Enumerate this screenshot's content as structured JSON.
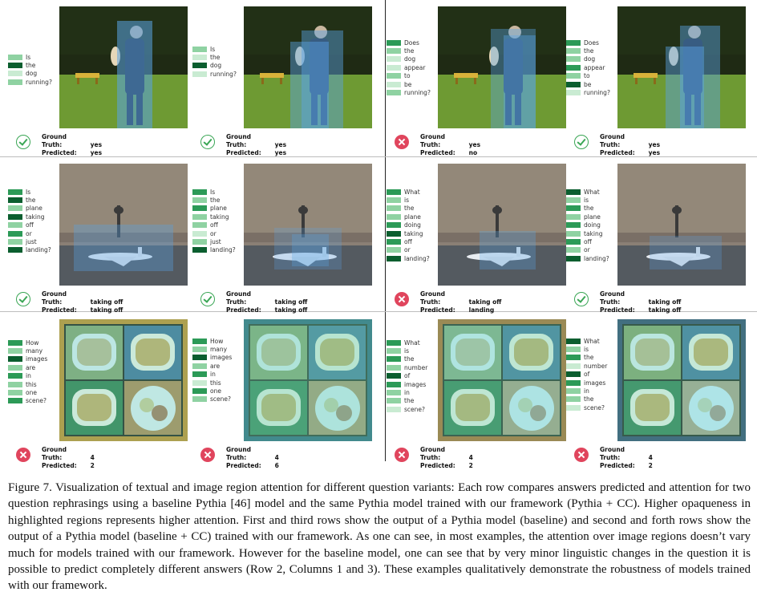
{
  "palette": {
    "dark": "#0b5e2f",
    "mid": "#2c9a57",
    "light": "#8fd2a2",
    "pale": "#c9ebd2"
  },
  "panels": [
    {
      "id": "r1c1",
      "words": [
        [
          "Is",
          "light"
        ],
        [
          "the",
          "dark"
        ],
        [
          "dog",
          "pale"
        ],
        [
          "running?",
          "light"
        ]
      ],
      "scene": "dog",
      "status": "ok",
      "gt_label": "Ground Truth:",
      "gt": "yes",
      "pred_label": "Predicted:",
      "pred": "yes"
    },
    {
      "id": "r1c2",
      "words": [
        [
          "Is",
          "light"
        ],
        [
          "the",
          "pale"
        ],
        [
          "dog",
          "dark"
        ],
        [
          "running?",
          "pale"
        ]
      ],
      "scene": "dog",
      "status": "ok",
      "gt_label": "Ground Truth:",
      "gt": "yes",
      "pred_label": "Predicted:",
      "pred": "yes"
    },
    {
      "id": "r1c3",
      "words": [
        [
          "Does",
          "mid"
        ],
        [
          "the",
          "light"
        ],
        [
          "dog",
          "pale"
        ],
        [
          "appear",
          "pale"
        ],
        [
          "to",
          "light"
        ],
        [
          "be",
          "pale"
        ],
        [
          "running?",
          "light"
        ]
      ],
      "scene": "dog",
      "status": "bad",
      "gt_label": "Ground Truth:",
      "gt": "yes",
      "pred_label": "Predicted:",
      "pred": "no"
    },
    {
      "id": "r1c4",
      "words": [
        [
          "Does",
          "mid"
        ],
        [
          "the",
          "light"
        ],
        [
          "dog",
          "light"
        ],
        [
          "appear",
          "mid"
        ],
        [
          "to",
          "light"
        ],
        [
          "be",
          "dark"
        ],
        [
          "running?",
          "pale"
        ]
      ],
      "scene": "dog",
      "status": "ok",
      "gt_label": "Ground Truth:",
      "gt": "yes",
      "pred_label": "Predicted:",
      "pred": "yes"
    },
    {
      "id": "r2c1",
      "words": [
        [
          "Is",
          "mid"
        ],
        [
          "the",
          "dark"
        ],
        [
          "plane",
          "light"
        ],
        [
          "taking",
          "dark"
        ],
        [
          "off",
          "light"
        ],
        [
          "or",
          "mid"
        ],
        [
          "just",
          "light"
        ],
        [
          "landing?",
          "dark"
        ]
      ],
      "scene": "plane",
      "status": "ok",
      "gt_label": "Ground Truth:",
      "gt": "taking off",
      "pred_label": "Predicted:",
      "pred": "taking off"
    },
    {
      "id": "r2c2",
      "words": [
        [
          "Is",
          "mid"
        ],
        [
          "the",
          "light"
        ],
        [
          "plane",
          "mid"
        ],
        [
          "taking",
          "light"
        ],
        [
          "off",
          "light"
        ],
        [
          "or",
          "pale"
        ],
        [
          "just",
          "light"
        ],
        [
          "landing?",
          "dark"
        ]
      ],
      "scene": "plane",
      "status": "ok",
      "gt_label": "Ground Truth:",
      "gt": "taking off",
      "pred_label": "Predicted:",
      "pred": "taking off"
    },
    {
      "id": "r2c3",
      "words": [
        [
          "What",
          "mid"
        ],
        [
          "is",
          "light"
        ],
        [
          "the",
          "light"
        ],
        [
          "plane",
          "light"
        ],
        [
          "doing",
          "mid"
        ],
        [
          "taking",
          "dark"
        ],
        [
          "off",
          "mid"
        ],
        [
          "or",
          "light"
        ],
        [
          "landing?",
          "dark"
        ]
      ],
      "scene": "plane",
      "status": "bad",
      "gt_label": "Ground Truth:",
      "gt": "taking off",
      "pred_label": "Predicted:",
      "pred": "landing"
    },
    {
      "id": "r2c4",
      "words": [
        [
          "What",
          "dark"
        ],
        [
          "is",
          "light"
        ],
        [
          "the",
          "mid"
        ],
        [
          "plane",
          "light"
        ],
        [
          "doing",
          "mid"
        ],
        [
          "taking",
          "light"
        ],
        [
          "off",
          "mid"
        ],
        [
          "or",
          "light"
        ],
        [
          "landing?",
          "dark"
        ]
      ],
      "scene": "plane",
      "status": "ok",
      "gt_label": "Ground Truth:",
      "gt": "taking off",
      "pred_label": "Predicted:",
      "pred": "taking off"
    },
    {
      "id": "r3c1",
      "words": [
        [
          "How",
          "mid"
        ],
        [
          "many",
          "light"
        ],
        [
          "images",
          "dark"
        ],
        [
          "are",
          "light"
        ],
        [
          "in",
          "mid"
        ],
        [
          "this",
          "light"
        ],
        [
          "one",
          "light"
        ],
        [
          "scene?",
          "mid"
        ]
      ],
      "scene": "food",
      "status": "bad",
      "gt_label": "Ground Truth:",
      "gt": "4",
      "pred_label": "Predicted:",
      "pred": "2"
    },
    {
      "id": "r3c2",
      "words": [
        [
          "How",
          "mid"
        ],
        [
          "many",
          "light"
        ],
        [
          "images",
          "dark"
        ],
        [
          "are",
          "light"
        ],
        [
          "in",
          "mid"
        ],
        [
          "this",
          "pale"
        ],
        [
          "one",
          "mid"
        ],
        [
          "scene?",
          "light"
        ]
      ],
      "scene": "food",
      "status": "bad",
      "gt_label": "Ground Truth:",
      "gt": "4",
      "pred_label": "Predicted:",
      "pred": "6"
    },
    {
      "id": "r3c3",
      "words": [
        [
          "What",
          "mid"
        ],
        [
          "is",
          "light"
        ],
        [
          "the",
          "mid"
        ],
        [
          "number",
          "light"
        ],
        [
          "of",
          "dark"
        ],
        [
          "images",
          "mid"
        ],
        [
          "in",
          "light"
        ],
        [
          "the",
          "light"
        ],
        [
          "scene?",
          "pale"
        ]
      ],
      "scene": "food",
      "status": "bad",
      "gt_label": "Ground Truth:",
      "gt": "4",
      "pred_label": "Predicted:",
      "pred": "2"
    },
    {
      "id": "r3c4",
      "words": [
        [
          "What",
          "dark"
        ],
        [
          "is",
          "light"
        ],
        [
          "the",
          "mid"
        ],
        [
          "number",
          "pale"
        ],
        [
          "of",
          "dark"
        ],
        [
          "images",
          "mid"
        ],
        [
          "in",
          "light"
        ],
        [
          "the",
          "light"
        ],
        [
          "scene?",
          "pale"
        ]
      ],
      "scene": "food",
      "status": "bad",
      "gt_label": "Ground Truth:",
      "gt": "4",
      "pred_label": "Predicted:",
      "pred": "2"
    }
  ],
  "caption": "Figure 7.  Visualization of textual and image region attention for different question variants: Each row compares answers predicted and attention for two question rephrasings using a baseline Pythia [46] model and the same Pythia model trained with our framework (Pythia + CC). Higher opaqueness in highlighted regions represents higher attention.  First and third rows show the output of a Pythia model (baseline) and second and forth rows show the output of a Pythia model (baseline + CC) trained with our framework.  As one can see, in most examples, the attention over image regions doesn’t vary much for models trained with our framework. However for the baseline model, one can see that by very minor linguistic changes in the question it is possible to predict completely different answers (Row 2, Columns 1 and 3). These examples qualitatively demonstrate the robustness of models trained with our framework."
}
